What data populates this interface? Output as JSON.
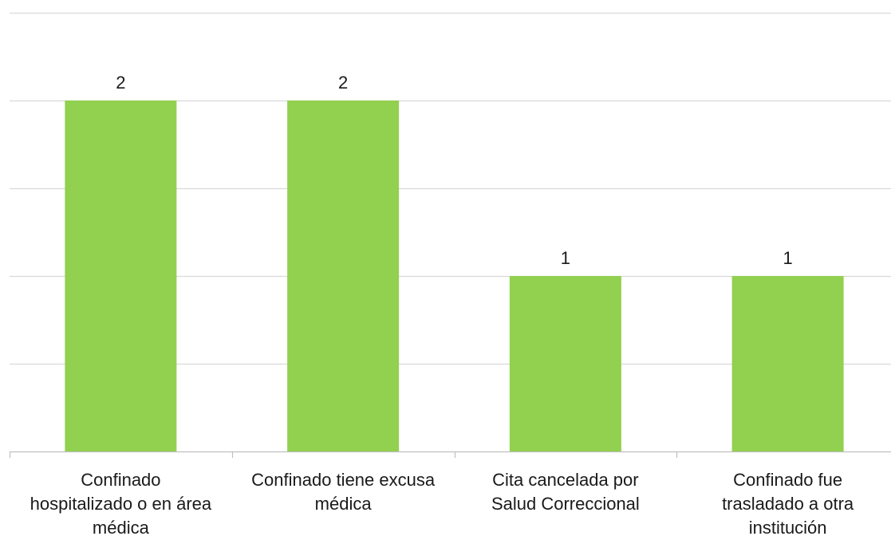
{
  "chart_data": {
    "type": "bar",
    "categories": [
      "Confinado hospitalizado o en área médica",
      "Confinado tiene excusa médica",
      "Cita cancelada por Salud Correccional",
      "Confinado fue trasladado a otra institución"
    ],
    "values": [
      2,
      2,
      1,
      1
    ],
    "ylim": [
      0,
      2.5
    ],
    "grid": true,
    "legend": "none",
    "data_labels": [
      "2",
      "2",
      "1",
      "1"
    ],
    "colors": {
      "bar": "#92d050",
      "grid": "#d9d9d9",
      "axis": "#bfbfbf",
      "text": "#1a1a1a"
    }
  }
}
